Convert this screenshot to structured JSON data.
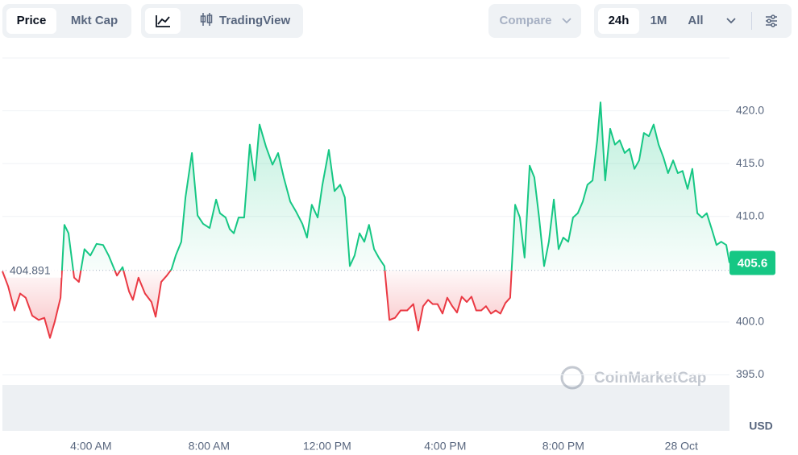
{
  "toolbar": {
    "price": "Price",
    "mkt_cap": "Mkt Cap",
    "trading_view": "TradingView",
    "compare": "Compare",
    "ranges": [
      "24h",
      "1M",
      "All"
    ]
  },
  "chart_data": {
    "type": "line",
    "x": [
      1.0,
      1.19,
      1.41,
      1.6,
      1.79,
      2.01,
      2.23,
      2.42,
      2.61,
      2.77,
      2.97,
      3.1,
      3.24,
      3.43,
      3.59,
      3.78,
      3.98,
      4.19,
      4.41,
      4.6,
      4.88,
      5.07,
      5.29,
      5.42,
      5.61,
      5.83,
      6.05,
      6.19,
      6.38,
      6.57,
      6.73,
      6.87,
      7.06,
      7.2,
      7.42,
      7.61,
      7.8,
      8.02,
      8.24,
      8.37,
      8.56,
      8.7,
      8.84,
      9.0,
      9.19,
      9.38,
      9.55,
      9.71,
      9.93,
      10.15,
      10.34,
      10.53,
      10.75,
      10.94,
      11.16,
      11.32,
      11.48,
      11.68,
      11.84,
      12.06,
      12.25,
      12.44,
      12.6,
      12.77,
      12.93,
      13.1,
      13.26,
      13.42,
      13.59,
      13.75,
      13.94,
      14.11,
      14.3,
      14.49,
      14.71,
      14.92,
      15.09,
      15.25,
      15.42,
      15.58,
      15.74,
      15.91,
      16.07,
      16.24,
      16.4,
      16.56,
      16.73,
      16.89,
      17.05,
      17.22,
      17.38,
      17.55,
      17.71,
      17.87,
      18.04,
      18.2,
      18.37,
      18.53,
      18.69,
      18.86,
      19.02,
      19.18,
      19.35,
      19.51,
      19.68,
      19.84,
      20.0,
      20.17,
      20.33,
      20.49,
      20.66,
      20.82,
      20.99,
      21.15,
      21.26,
      21.42,
      21.59,
      21.75,
      21.91,
      22.08,
      22.24,
      22.41,
      22.57,
      22.73,
      22.9,
      23.06,
      23.23,
      23.39,
      23.55,
      23.72,
      23.88,
      24.04,
      24.21,
      24.37,
      24.54,
      24.7,
      24.86,
      25.03,
      25.19,
      25.35,
      25.52,
      25.63
    ],
    "series": [
      {
        "color": "#16c784",
        "below_color": "#ea3943",
        "values": [
          404.8,
          403.4,
          401.1,
          402.7,
          402.3,
          400.6,
          400.2,
          400.4,
          398.5,
          400.0,
          402.3,
          409.2,
          408.4,
          404.2,
          403.8,
          406.9,
          406.3,
          407.4,
          407.3,
          406.3,
          404.4,
          405.2,
          402.9,
          402.1,
          404.2,
          402.7,
          401.9,
          400.5,
          403.8,
          404.4,
          405.0,
          406.3,
          407.6,
          411.8,
          416.0,
          410.1,
          409.3,
          408.9,
          411.6,
          410.3,
          409.9,
          408.8,
          408.4,
          409.9,
          409.9,
          416.8,
          413.4,
          418.7,
          416.6,
          414.9,
          416.0,
          413.7,
          411.4,
          410.5,
          409.3,
          408.0,
          411.1,
          409.9,
          413.0,
          416.3,
          412.4,
          413.0,
          411.8,
          405.3,
          406.3,
          408.4,
          407.6,
          409.2,
          406.9,
          406.1,
          405.3,
          400.2,
          400.4,
          401.1,
          401.1,
          401.7,
          399.2,
          401.5,
          402.1,
          401.7,
          401.7,
          400.8,
          402.3,
          401.5,
          400.9,
          402.4,
          401.9,
          402.4,
          401.1,
          401.1,
          401.5,
          400.8,
          401.1,
          400.8,
          401.8,
          402.3,
          411.1,
          409.9,
          406.1,
          414.8,
          413.7,
          409.9,
          405.3,
          407.6,
          411.6,
          406.9,
          408.0,
          407.6,
          409.9,
          410.3,
          411.4,
          413.0,
          413.4,
          417.2,
          420.8,
          413.4,
          418.3,
          416.8,
          417.2,
          416.0,
          416.4,
          414.5,
          415.3,
          417.9,
          417.6,
          418.7,
          416.8,
          415.6,
          414.1,
          415.3,
          414.1,
          414.3,
          412.6,
          414.5,
          410.3,
          409.9,
          410.3,
          408.8,
          407.3,
          407.6,
          407.3,
          405.6
        ]
      }
    ],
    "baseline": 404.891,
    "xlim": [
      1.0,
      25.63
    ],
    "ylim": [
      389.7,
      425.0
    ],
    "xticks": [
      {
        "value": 4,
        "label": "4:00 AM"
      },
      {
        "value": 8,
        "label": "8:00 AM"
      },
      {
        "value": 12,
        "label": "12:00 PM"
      },
      {
        "value": 16,
        "label": "4:00 PM"
      },
      {
        "value": 20,
        "label": "8:00 PM"
      },
      {
        "value": 24,
        "label": "28 Oct"
      }
    ],
    "yticks": [
      {
        "value": 395,
        "label": "395.0"
      },
      {
        "value": 400,
        "label": "400.0"
      },
      {
        "value": 410,
        "label": "410.0"
      },
      {
        "value": 415,
        "label": "415.0"
      },
      {
        "value": 420,
        "label": "420.0"
      }
    ],
    "grid": true,
    "y_axis_label": "USD",
    "watermark": "CoinMarketCap"
  }
}
